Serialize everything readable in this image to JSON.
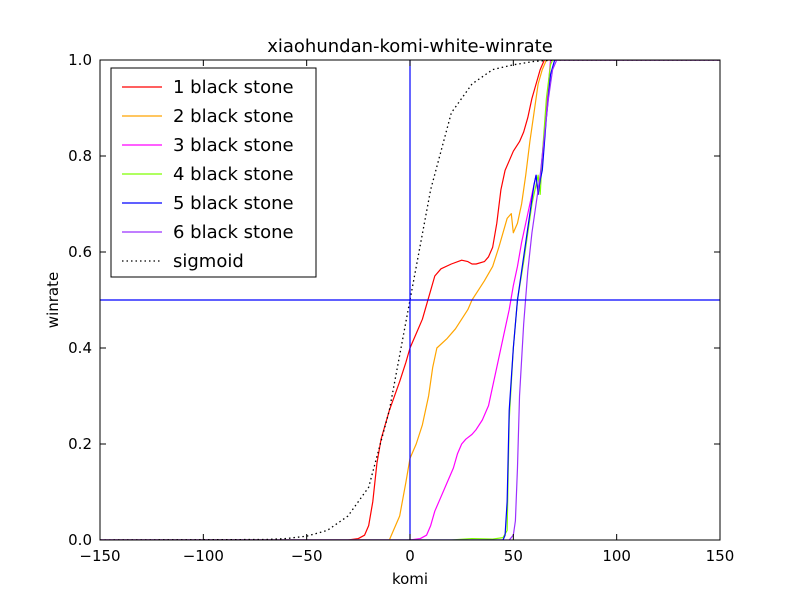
{
  "chart_data": {
    "type": "line",
    "title": "xiaohundan-komi-white-winrate",
    "xlabel": "komi",
    "ylabel": "winrate",
    "xlim": [
      -150,
      150
    ],
    "ylim": [
      0.0,
      1.0
    ],
    "xticks": [
      -150,
      -100,
      -50,
      0,
      50,
      100,
      150
    ],
    "xtick_labels": [
      "−150",
      "−100",
      "−50",
      "0",
      "50",
      "100",
      "150"
    ],
    "yticks": [
      0.0,
      0.2,
      0.4,
      0.6,
      0.8,
      1.0
    ],
    "ytick_labels": [
      "0.0",
      "0.2",
      "0.4",
      "0.6",
      "0.8",
      "1.0"
    ],
    "grid": false,
    "legend_position": "top-left",
    "reference_lines": [
      {
        "orientation": "vertical",
        "value": 0,
        "color": "#0000ff"
      },
      {
        "orientation": "horizontal",
        "value": 0.5,
        "color": "#0000ff"
      }
    ],
    "series": [
      {
        "name": "1 black stone",
        "color": "#ff0000",
        "style": "solid",
        "points": [
          [
            -150,
            0
          ],
          [
            -30,
            0
          ],
          [
            -25,
            0.003
          ],
          [
            -22,
            0.01
          ],
          [
            -20,
            0.03
          ],
          [
            -18,
            0.08
          ],
          [
            -16,
            0.16
          ],
          [
            -14,
            0.21
          ],
          [
            -10,
            0.27
          ],
          [
            -5,
            0.33
          ],
          [
            -2,
            0.37
          ],
          [
            0,
            0.4
          ],
          [
            3,
            0.43
          ],
          [
            6,
            0.46
          ],
          [
            8,
            0.49
          ],
          [
            10,
            0.52
          ],
          [
            12,
            0.55
          ],
          [
            15,
            0.565
          ],
          [
            20,
            0.575
          ],
          [
            25,
            0.583
          ],
          [
            28,
            0.58
          ],
          [
            30,
            0.575
          ],
          [
            32,
            0.575
          ],
          [
            36,
            0.58
          ],
          [
            38,
            0.59
          ],
          [
            40,
            0.61
          ],
          [
            42,
            0.66
          ],
          [
            44,
            0.73
          ],
          [
            46,
            0.77
          ],
          [
            48,
            0.79
          ],
          [
            50,
            0.81
          ],
          [
            53,
            0.83
          ],
          [
            55,
            0.85
          ],
          [
            57,
            0.88
          ],
          [
            59,
            0.92
          ],
          [
            61,
            0.95
          ],
          [
            63,
            0.98
          ],
          [
            65,
            1.0
          ],
          [
            150,
            1.0
          ]
        ]
      },
      {
        "name": "2 black stone",
        "color": "#ffa500",
        "style": "solid",
        "points": [
          [
            -150,
            0
          ],
          [
            -10,
            0
          ],
          [
            -5,
            0.05
          ],
          [
            -2,
            0.12
          ],
          [
            0,
            0.17
          ],
          [
            3,
            0.2
          ],
          [
            6,
            0.24
          ],
          [
            9,
            0.3
          ],
          [
            11,
            0.36
          ],
          [
            13,
            0.4
          ],
          [
            18,
            0.42
          ],
          [
            22,
            0.44
          ],
          [
            25,
            0.46
          ],
          [
            28,
            0.48
          ],
          [
            30,
            0.5
          ],
          [
            33,
            0.52
          ],
          [
            36,
            0.54
          ],
          [
            40,
            0.57
          ],
          [
            43,
            0.61
          ],
          [
            45,
            0.64
          ],
          [
            47,
            0.67
          ],
          [
            49,
            0.68
          ],
          [
            50,
            0.64
          ],
          [
            52,
            0.66
          ],
          [
            54,
            0.7
          ],
          [
            56,
            0.76
          ],
          [
            58,
            0.83
          ],
          [
            60,
            0.89
          ],
          [
            62,
            0.95
          ],
          [
            64,
            0.98
          ],
          [
            66,
            1.0
          ],
          [
            150,
            1.0
          ]
        ]
      },
      {
        "name": "3 black stone",
        "color": "#ff00ff",
        "style": "solid",
        "points": [
          [
            -150,
            0
          ],
          [
            0,
            0
          ],
          [
            5,
            0.003
          ],
          [
            8,
            0.01
          ],
          [
            10,
            0.03
          ],
          [
            12,
            0.06
          ],
          [
            15,
            0.09
          ],
          [
            18,
            0.12
          ],
          [
            21,
            0.15
          ],
          [
            23,
            0.18
          ],
          [
            25,
            0.2
          ],
          [
            27,
            0.21
          ],
          [
            30,
            0.22
          ],
          [
            32,
            0.23
          ],
          [
            35,
            0.25
          ],
          [
            38,
            0.28
          ],
          [
            40,
            0.32
          ],
          [
            42,
            0.36
          ],
          [
            44,
            0.4
          ],
          [
            46,
            0.44
          ],
          [
            48,
            0.48
          ],
          [
            50,
            0.53
          ],
          [
            52,
            0.57
          ],
          [
            54,
            0.62
          ],
          [
            56,
            0.66
          ],
          [
            58,
            0.7
          ],
          [
            60,
            0.74
          ],
          [
            61,
            0.76
          ],
          [
            62,
            0.72
          ],
          [
            63,
            0.75
          ],
          [
            65,
            0.85
          ],
          [
            67,
            0.95
          ],
          [
            68,
            1.0
          ],
          [
            150,
            1.0
          ]
        ]
      },
      {
        "name": "4 black stone",
        "color": "#7fff00",
        "style": "solid",
        "points": [
          [
            -150,
            0
          ],
          [
            20,
            0
          ],
          [
            30,
            0.003
          ],
          [
            40,
            0.002
          ],
          [
            45,
            0.005
          ],
          [
            47,
            0.02
          ],
          [
            48,
            0.25
          ],
          [
            50,
            0.4
          ],
          [
            52,
            0.5
          ],
          [
            55,
            0.58
          ],
          [
            57,
            0.64
          ],
          [
            59,
            0.7
          ],
          [
            61,
            0.74
          ],
          [
            62,
            0.76
          ],
          [
            63,
            0.72
          ],
          [
            64,
            0.8
          ],
          [
            66,
            0.92
          ],
          [
            68,
            0.99
          ],
          [
            69,
            1.0
          ],
          [
            150,
            1.0
          ]
        ]
      },
      {
        "name": "5 black stone",
        "color": "#0000ff",
        "style": "solid",
        "points": [
          [
            -150,
            0
          ],
          [
            45,
            0
          ],
          [
            46,
            0.01
          ],
          [
            47,
            0.08
          ],
          [
            48,
            0.27
          ],
          [
            50,
            0.4
          ],
          [
            52,
            0.5
          ],
          [
            54,
            0.56
          ],
          [
            56,
            0.62
          ],
          [
            58,
            0.68
          ],
          [
            60,
            0.74
          ],
          [
            61,
            0.76
          ],
          [
            62,
            0.72
          ],
          [
            63,
            0.75
          ],
          [
            64,
            0.77
          ],
          [
            66,
            0.88
          ],
          [
            68,
            0.97
          ],
          [
            70,
            1.0
          ],
          [
            150,
            1.0
          ]
        ]
      },
      {
        "name": "6 black stone",
        "color": "#9b30ff",
        "style": "solid",
        "points": [
          [
            -150,
            0
          ],
          [
            48,
            0
          ],
          [
            50,
            0.01
          ],
          [
            51,
            0.04
          ],
          [
            52,
            0.15
          ],
          [
            53,
            0.3
          ],
          [
            55,
            0.45
          ],
          [
            57,
            0.56
          ],
          [
            59,
            0.64
          ],
          [
            61,
            0.7
          ],
          [
            63,
            0.76
          ],
          [
            65,
            0.84
          ],
          [
            67,
            0.92
          ],
          [
            69,
            0.98
          ],
          [
            71,
            1.0
          ],
          [
            150,
            1.0
          ]
        ]
      },
      {
        "name": "sigmoid",
        "color": "#000000",
        "style": "dotted",
        "points": [
          [
            -150,
            0
          ],
          [
            -70,
            0.001
          ],
          [
            -60,
            0.003
          ],
          [
            -50,
            0.008
          ],
          [
            -40,
            0.02
          ],
          [
            -30,
            0.05
          ],
          [
            -20,
            0.11
          ],
          [
            -10,
            0.27
          ],
          [
            0,
            0.5
          ],
          [
            10,
            0.73
          ],
          [
            20,
            0.89
          ],
          [
            30,
            0.95
          ],
          [
            40,
            0.98
          ],
          [
            50,
            0.99
          ],
          [
            60,
            0.997
          ],
          [
            70,
            1.0
          ],
          [
            150,
            1.0
          ]
        ]
      }
    ]
  }
}
